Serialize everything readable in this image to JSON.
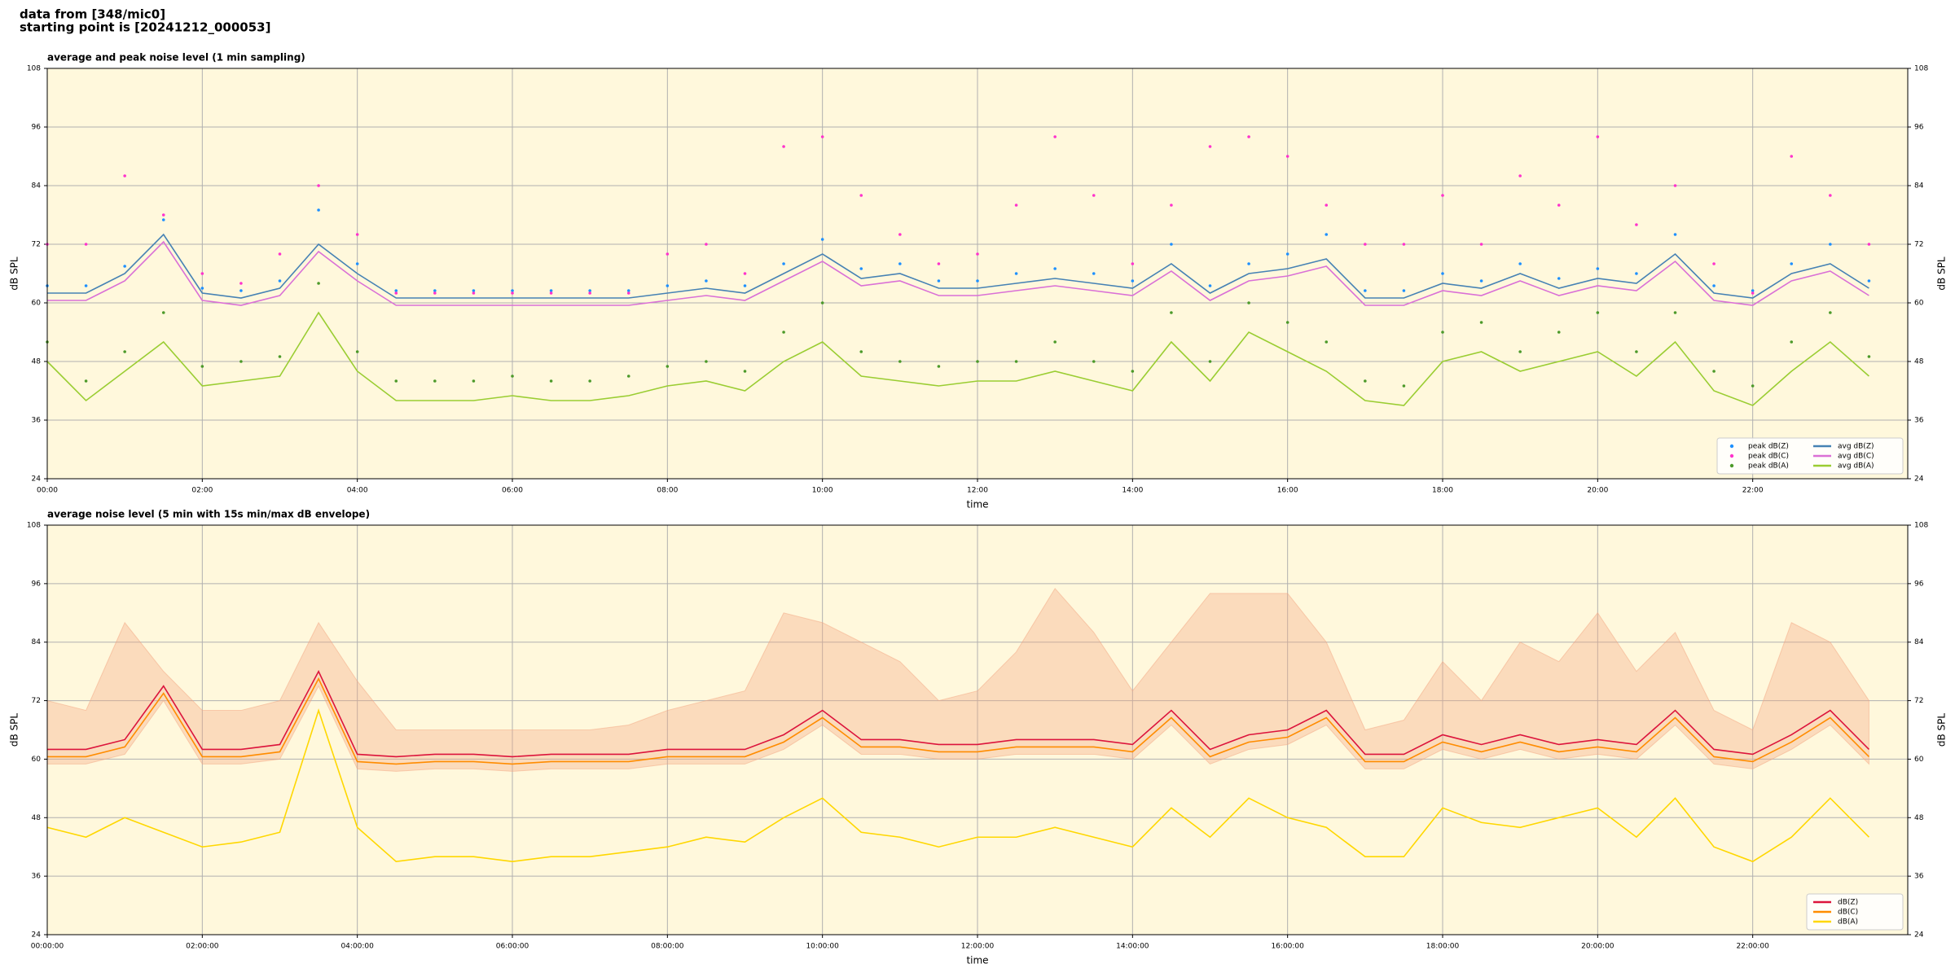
{
  "header": {
    "lines": [
      "data from [348/mic0]",
      "starting point is [20241212_000053]"
    ]
  },
  "chart_data": [
    {
      "type": "line",
      "title": "average and peak noise level (1 min sampling)",
      "x_label": "time",
      "y_label": "dB SPL",
      "x": [
        "00:00",
        "00:30",
        "01:00",
        "01:30",
        "02:00",
        "02:30",
        "03:00",
        "03:30",
        "04:00",
        "04:30",
        "05:00",
        "05:30",
        "06:00",
        "06:30",
        "07:00",
        "07:30",
        "08:00",
        "08:30",
        "09:00",
        "09:30",
        "10:00",
        "10:30",
        "11:00",
        "11:30",
        "12:00",
        "12:30",
        "13:00",
        "13:30",
        "14:00",
        "14:30",
        "15:00",
        "15:30",
        "16:00",
        "16:30",
        "17:00",
        "17:30",
        "18:00",
        "18:30",
        "19:00",
        "19:30",
        "20:00",
        "20:30",
        "21:00",
        "21:30",
        "22:00",
        "22:30",
        "23:00",
        "23:30"
      ],
      "xlim": [
        "00:00",
        "24:00"
      ],
      "xticks": [
        "00:00",
        "02:00",
        "04:00",
        "06:00",
        "08:00",
        "10:00",
        "12:00",
        "14:00",
        "16:00",
        "18:00",
        "20:00",
        "22:00"
      ],
      "ylim": [
        24,
        108
      ],
      "yticks": [
        24,
        36,
        48,
        60,
        72,
        84,
        96,
        108
      ],
      "grid": true,
      "background": "#fff8dc",
      "legend": "lower right",
      "legend_columns": 2,
      "series": [
        {
          "name": "peak dB(Z)",
          "kind": "scatter",
          "color": "#1e90ff",
          "values": [
            63.5,
            63.5,
            67.5,
            77,
            63,
            62.5,
            64.5,
            79,
            68,
            62.5,
            62.5,
            62.5,
            62.5,
            62.5,
            62.5,
            62.5,
            63.5,
            64.5,
            63.5,
            68,
            73,
            67,
            68,
            64.5,
            64.5,
            66,
            67,
            66,
            64.5,
            72,
            63.5,
            68,
            70,
            74,
            62.5,
            62.5,
            66,
            64.5,
            68,
            65,
            67,
            66,
            74,
            63.5,
            62.5,
            68,
            72,
            64.5
          ]
        },
        {
          "name": "peak dB(C)",
          "kind": "scatter",
          "color": "#ff33cc",
          "values": [
            72,
            72,
            86,
            78,
            66,
            64,
            70,
            84,
            74,
            62,
            62,
            62,
            62,
            62,
            62,
            62,
            70,
            72,
            66,
            92,
            94,
            82,
            74,
            68,
            70,
            80,
            94,
            82,
            68,
            80,
            92,
            94,
            90,
            80,
            72,
            72,
            82,
            72,
            86,
            80,
            94,
            76,
            84,
            68,
            62,
            90,
            82,
            72
          ]
        },
        {
          "name": "peak dB(A)",
          "kind": "scatter",
          "color": "#4c9a2a",
          "values": [
            52,
            44,
            50,
            58,
            47,
            48,
            49,
            64,
            50,
            44,
            44,
            44,
            45,
            44,
            44,
            45,
            47,
            48,
            46,
            54,
            60,
            50,
            48,
            47,
            48,
            48,
            52,
            48,
            46,
            58,
            48,
            60,
            56,
            52,
            44,
            43,
            54,
            56,
            50,
            54,
            58,
            50,
            58,
            46,
            43,
            52,
            58,
            49
          ]
        },
        {
          "name": "avg dB(Z)",
          "kind": "line",
          "color": "#4682b4",
          "values": [
            62,
            62,
            66,
            74,
            62,
            61,
            63,
            72,
            66,
            61,
            61,
            61,
            61,
            61,
            61,
            61,
            62,
            63,
            62,
            66,
            70,
            65,
            66,
            63,
            63,
            64,
            65,
            64,
            63,
            68,
            62,
            66,
            67,
            69,
            61,
            61,
            64,
            63,
            66,
            63,
            65,
            64,
            70,
            62,
            61,
            66,
            68,
            63
          ]
        },
        {
          "name": "avg dB(C)",
          "kind": "line",
          "color": "#da70d6",
          "values": [
            60.5,
            60.5,
            64.5,
            72.5,
            60.5,
            59.5,
            61.5,
            70.5,
            64.5,
            59.5,
            59.5,
            59.5,
            59.5,
            59.5,
            59.5,
            59.5,
            60.5,
            61.5,
            60.5,
            64.5,
            68.5,
            63.5,
            64.5,
            61.5,
            61.5,
            62.5,
            63.5,
            62.5,
            61.5,
            66.5,
            60.5,
            64.5,
            65.5,
            67.5,
            59.5,
            59.5,
            62.5,
            61.5,
            64.5,
            61.5,
            63.5,
            62.5,
            68.5,
            60.5,
            59.5,
            64.5,
            66.5,
            61.5
          ]
        },
        {
          "name": "avg dB(A)",
          "kind": "line",
          "color": "#9acd32",
          "values": [
            48,
            40,
            46,
            52,
            43,
            44,
            45,
            58,
            46,
            40,
            40,
            40,
            41,
            40,
            40,
            41,
            43,
            44,
            42,
            48,
            52,
            45,
            44,
            43,
            44,
            44,
            46,
            44,
            42,
            52,
            44,
            54,
            50,
            46,
            40,
            39,
            48,
            50,
            46,
            48,
            50,
            45,
            52,
            42,
            39,
            46,
            52,
            45
          ]
        }
      ]
    },
    {
      "type": "line",
      "title": "average noise level (5 min with 15s min/max dB envelope)",
      "x_label": "time",
      "y_label": "dB SPL",
      "x": [
        "00:00",
        "00:30",
        "01:00",
        "01:30",
        "02:00",
        "02:30",
        "03:00",
        "03:30",
        "04:00",
        "04:30",
        "05:00",
        "05:30",
        "06:00",
        "06:30",
        "07:00",
        "07:30",
        "08:00",
        "08:30",
        "09:00",
        "09:30",
        "10:00",
        "10:30",
        "11:00",
        "11:30",
        "12:00",
        "12:30",
        "13:00",
        "13:30",
        "14:00",
        "14:30",
        "15:00",
        "15:30",
        "16:00",
        "16:30",
        "17:00",
        "17:30",
        "18:00",
        "18:30",
        "19:00",
        "19:30",
        "20:00",
        "20:30",
        "21:00",
        "21:30",
        "22:00",
        "22:30",
        "23:00",
        "23:30"
      ],
      "xlim": [
        "00:00",
        "24:00"
      ],
      "xticks": [
        {
          "value": "00:00",
          "label": "00:00:00"
        },
        {
          "value": "02:00",
          "label": "02:00:00"
        },
        {
          "value": "04:00",
          "label": "04:00:00"
        },
        {
          "value": "06:00",
          "label": "06:00:00"
        },
        {
          "value": "08:00",
          "label": "08:00:00"
        },
        {
          "value": "10:00",
          "label": "10:00:00"
        },
        {
          "value": "12:00",
          "label": "12:00:00"
        },
        {
          "value": "14:00",
          "label": "14:00:00"
        },
        {
          "value": "16:00",
          "label": "16:00:00"
        },
        {
          "value": "18:00",
          "label": "18:00:00"
        },
        {
          "value": "20:00",
          "label": "20:00:00"
        },
        {
          "value": "22:00",
          "label": "22:00:00"
        }
      ],
      "ylim": [
        24,
        108
      ],
      "yticks": [
        24,
        36,
        48,
        60,
        72,
        84,
        96,
        108
      ],
      "grid": true,
      "background": "#fff8dc",
      "legend": "lower right",
      "legend_columns": 1,
      "envelope": {
        "color": "#f4a582",
        "min": [
          59,
          59,
          61,
          72,
          59,
          59,
          60,
          75,
          58,
          57.5,
          58,
          58,
          57.5,
          58,
          58,
          58,
          59,
          59,
          59,
          62,
          67,
          61,
          61,
          60,
          60,
          61,
          61,
          61,
          60,
          67,
          59,
          62,
          63,
          67,
          58,
          58,
          62,
          60,
          62,
          60,
          61,
          60,
          67,
          59,
          58,
          62,
          67,
          59
        ],
        "max": [
          72,
          70,
          88,
          78,
          70,
          70,
          72,
          88,
          76,
          66,
          66,
          66,
          66,
          66,
          66,
          67,
          70,
          72,
          74,
          90,
          88,
          84,
          80,
          72,
          74,
          82,
          95,
          86,
          74,
          84,
          94,
          94,
          94,
          84,
          66,
          68,
          80,
          72,
          84,
          80,
          90,
          78,
          86,
          70,
          66,
          88,
          84,
          72
        ]
      },
      "series": [
        {
          "name": "dB(Z)",
          "kind": "line",
          "color": "#dc143c",
          "values": [
            62,
            62,
            64,
            75,
            62,
            62,
            63,
            78,
            61,
            60.5,
            61,
            61,
            60.5,
            61,
            61,
            61,
            62,
            62,
            62,
            65,
            70,
            64,
            64,
            63,
            63,
            64,
            64,
            64,
            63,
            70,
            62,
            65,
            66,
            70,
            61,
            61,
            65,
            63,
            65,
            63,
            64,
            63,
            70,
            62,
            61,
            65,
            70,
            62
          ]
        },
        {
          "name": "dB(C)",
          "kind": "line",
          "color": "#ff8c00",
          "values": [
            60.5,
            60.5,
            62.5,
            73.5,
            60.5,
            60.5,
            61.5,
            76.5,
            59.5,
            59,
            59.5,
            59.5,
            59,
            59.5,
            59.5,
            59.5,
            60.5,
            60.5,
            60.5,
            63.5,
            68.5,
            62.5,
            62.5,
            61.5,
            61.5,
            62.5,
            62.5,
            62.5,
            61.5,
            68.5,
            60.5,
            63.5,
            64.5,
            68.5,
            59.5,
            59.5,
            63.5,
            61.5,
            63.5,
            61.5,
            62.5,
            61.5,
            68.5,
            60.5,
            59.5,
            63.5,
            68.5,
            60.5
          ]
        },
        {
          "name": "dB(A)",
          "kind": "line",
          "color": "#ffd700",
          "values": [
            46,
            44,
            48,
            45,
            42,
            43,
            45,
            70,
            46,
            39,
            40,
            40,
            39,
            40,
            40,
            41,
            42,
            44,
            43,
            48,
            52,
            45,
            44,
            42,
            44,
            44,
            46,
            44,
            42,
            50,
            44,
            52,
            48,
            46,
            40,
            40,
            50,
            47,
            46,
            48,
            50,
            44,
            52,
            42,
            39,
            44,
            52,
            44
          ]
        }
      ]
    }
  ]
}
